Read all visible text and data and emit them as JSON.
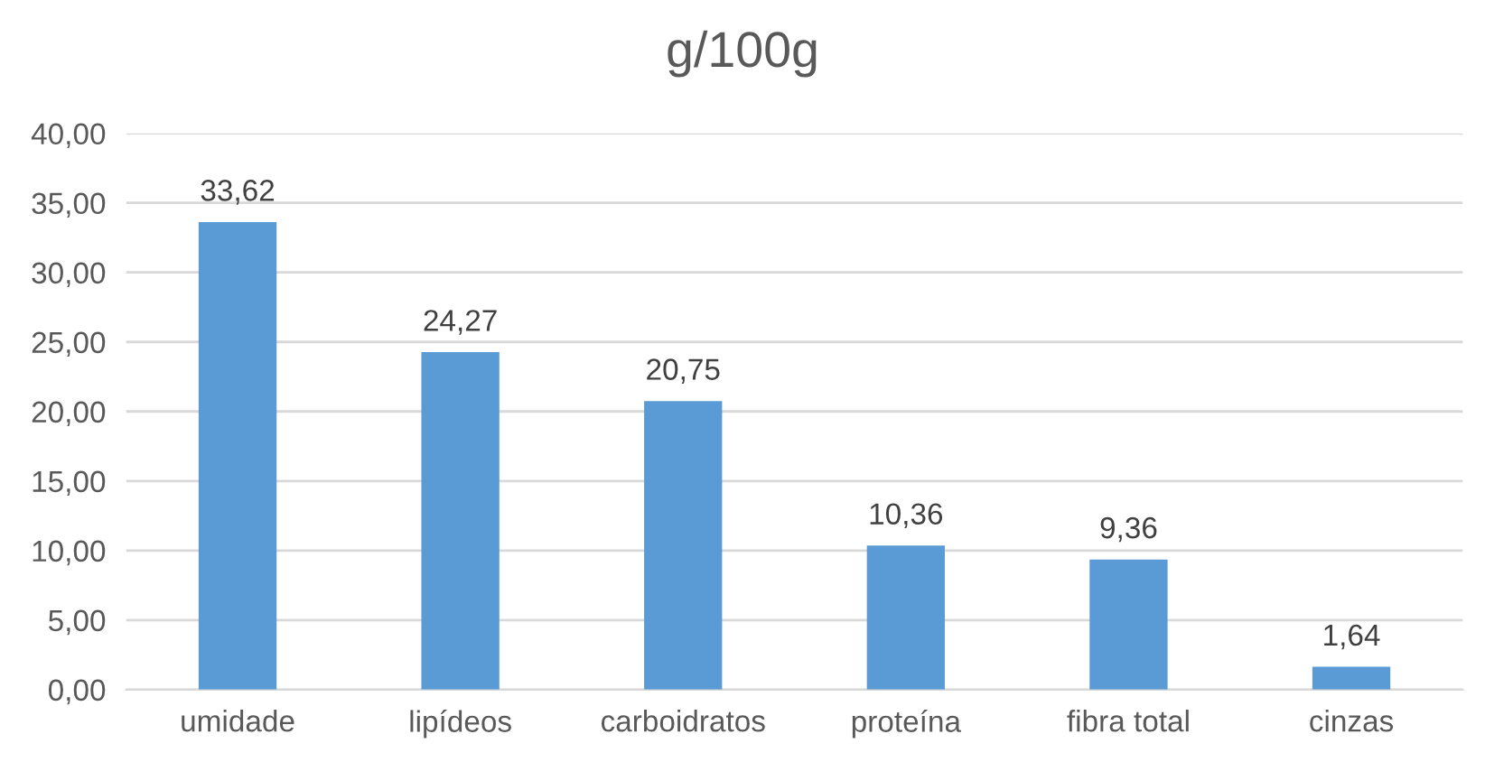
{
  "chart_data": {
    "type": "bar",
    "title": "g/100g",
    "categories": [
      "umidade",
      "lipídeos",
      "carboidratos",
      "proteína",
      "fibra total",
      "cinzas"
    ],
    "values": [
      33.62,
      24.27,
      20.75,
      10.36,
      9.36,
      1.64
    ],
    "value_labels": [
      "33,62",
      "24,27",
      "20,75",
      "10,36",
      "9,36",
      "1,64"
    ],
    "color": "#5b9bd5",
    "ylim": [
      0,
      40
    ],
    "yticks": [
      {
        "value": 0,
        "label": "0,00"
      },
      {
        "value": 5,
        "label": "5,00"
      },
      {
        "value": 10,
        "label": "10,00"
      },
      {
        "value": 15,
        "label": "15,00"
      },
      {
        "value": 20,
        "label": "20,00"
      },
      {
        "value": 25,
        "label": "25,00"
      },
      {
        "value": 30,
        "label": "30,00"
      },
      {
        "value": 35,
        "label": "35,00"
      },
      {
        "value": 40,
        "label": "40,00"
      }
    ],
    "grid": "y"
  }
}
